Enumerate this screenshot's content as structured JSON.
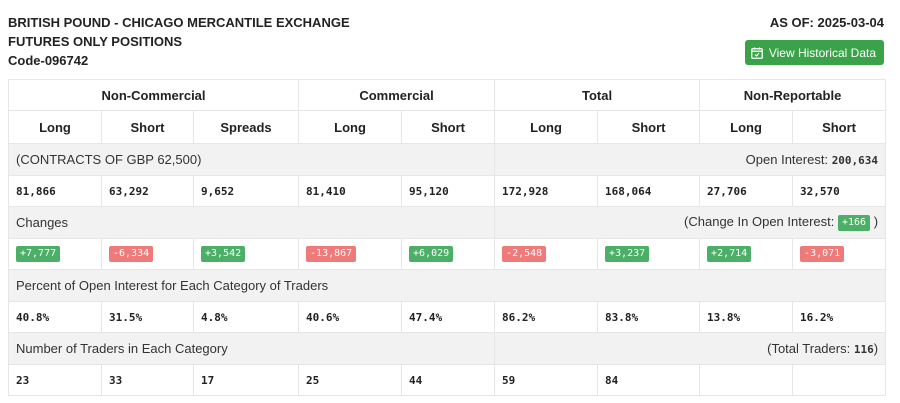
{
  "header": {
    "title_lines": [
      "BRITISH POUND - CHICAGO MERCANTILE EXCHANGE",
      "FUTURES ONLY POSITIONS",
      "Code-096742"
    ],
    "as_of": "AS OF: 2025-03-04",
    "history_button": "View Historical Data",
    "history_icon": "calendar-icon"
  },
  "groups": [
    "Non-Commercial",
    "Commercial",
    "Total",
    "Non-Reportable"
  ],
  "columns": [
    "Long",
    "Short",
    "Spreads",
    "Long",
    "Short",
    "Long",
    "Short",
    "Long",
    "Short"
  ],
  "contracts": {
    "label": "(CONTRACTS OF GBP 62,500)",
    "oi_label": "Open Interest:",
    "oi_value": "200,634",
    "values": [
      "81,866",
      "63,292",
      "9,652",
      "81,410",
      "95,120",
      "172,928",
      "168,064",
      "27,706",
      "32,570"
    ]
  },
  "changes": {
    "label": "Changes",
    "oi_label": "(Change In Open Interest:",
    "oi_value": "+166",
    "oi_close": ")",
    "values": [
      "+7,777",
      "-6,334",
      "+3,542",
      "-13,867",
      "+6,029",
      "-2,548",
      "+3,237",
      "+2,714",
      "-3,071"
    ],
    "positive_color": "#4caf67",
    "negative_color": "#ee7a7a"
  },
  "percent": {
    "label": "Percent of Open Interest for Each Category of Traders",
    "values": [
      "40.8%",
      "31.5%",
      "4.8%",
      "40.6%",
      "47.4%",
      "86.2%",
      "83.8%",
      "13.8%",
      "16.2%"
    ]
  },
  "traders": {
    "label": "Number of Traders in Each Category",
    "total_label": "(Total Traders:",
    "total_value": "116",
    "total_close": ")",
    "values": [
      "23",
      "33",
      "17",
      "25",
      "44",
      "59",
      "84",
      "",
      ""
    ]
  },
  "colors": {
    "accent": "#3aa34a",
    "band": "#f2f2f2"
  }
}
